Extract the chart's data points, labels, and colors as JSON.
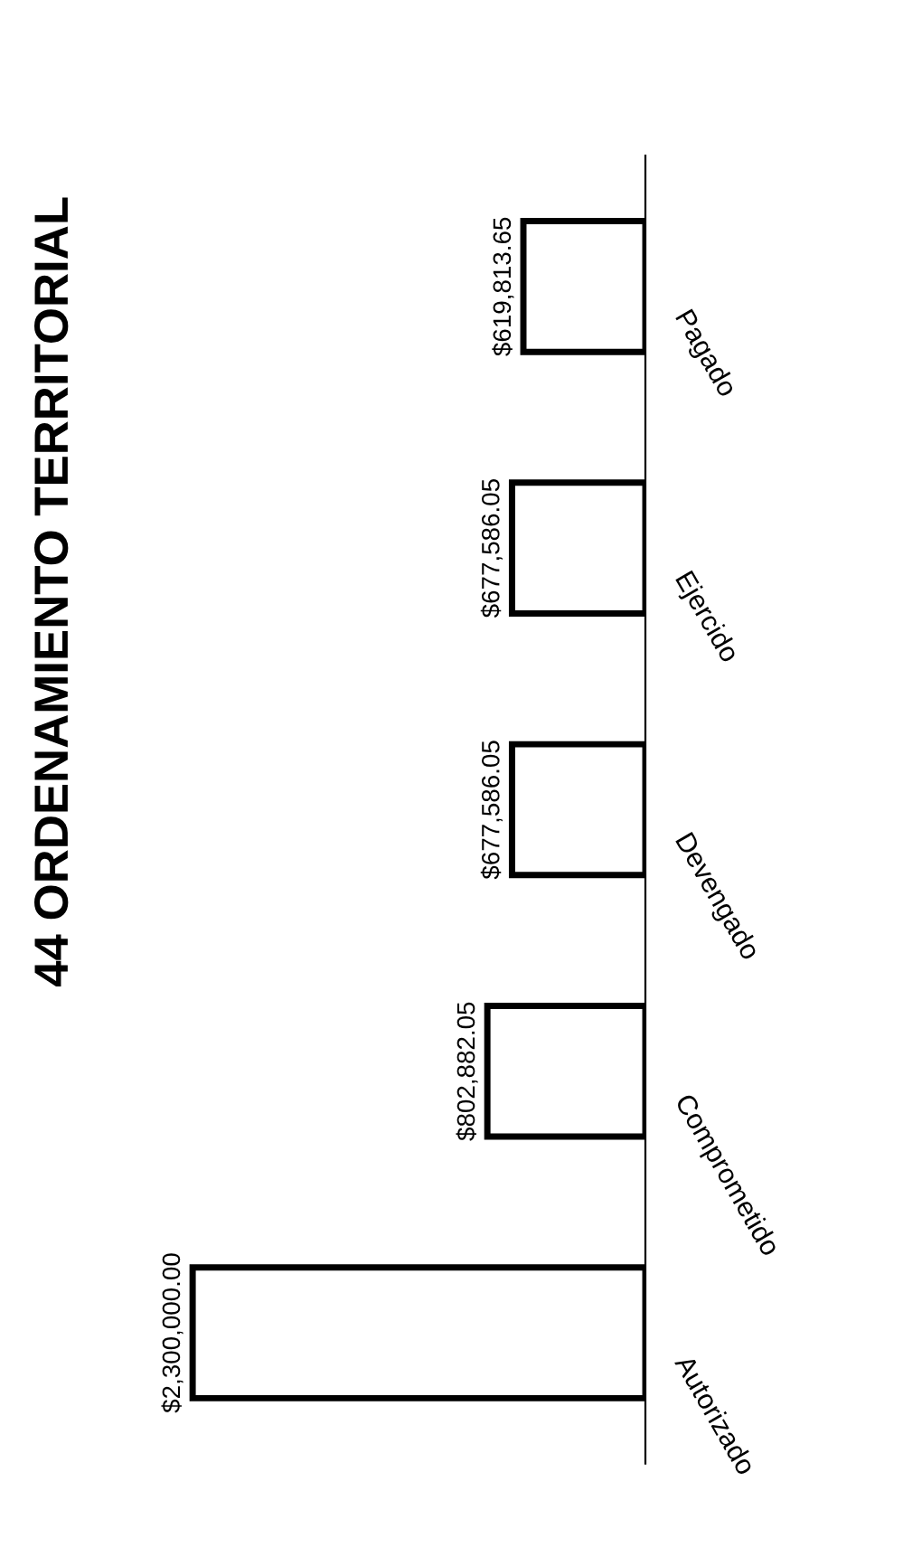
{
  "chart_data": {
    "type": "bar",
    "orientation": "horizontal",
    "title": "44 ORDENAMIENTO TERRITORIAL",
    "categories": [
      "Pagado",
      "Ejercido",
      "Devengado",
      "Comprometido",
      "Autorizado"
    ],
    "values": [
      619813.65,
      677586.05,
      677586.05,
      802882.05,
      2300000.0
    ],
    "value_labels": [
      "$619,813.65",
      "$677,586.05",
      "$677,586.05",
      "$802,882.05",
      "$2,300,000.00"
    ],
    "color": "#ffffff"
  }
}
